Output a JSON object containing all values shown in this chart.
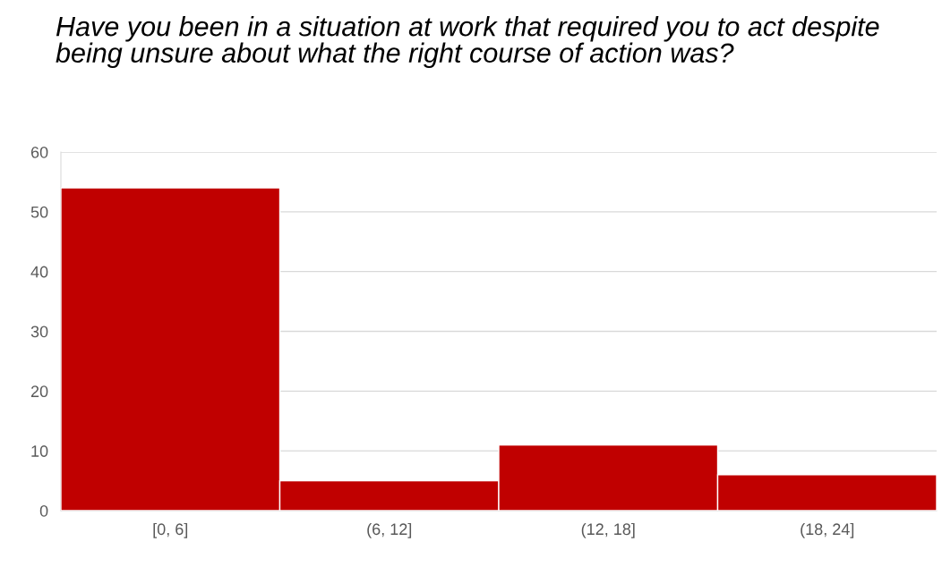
{
  "chart_data": {
    "type": "bar",
    "title": "Have you been in a situation at work that required you to act despite being unsure about what the right course of action was?",
    "categories": [
      "[0, 6]",
      "(6, 12]",
      "(12, 18]",
      "(18, 24]"
    ],
    "values": [
      54,
      5,
      11,
      6
    ],
    "color": "#c00000",
    "ylim": [
      0,
      60
    ],
    "yticks": [
      0,
      10,
      20,
      30,
      40,
      50,
      60
    ],
    "grid": "y",
    "legend": false
  }
}
